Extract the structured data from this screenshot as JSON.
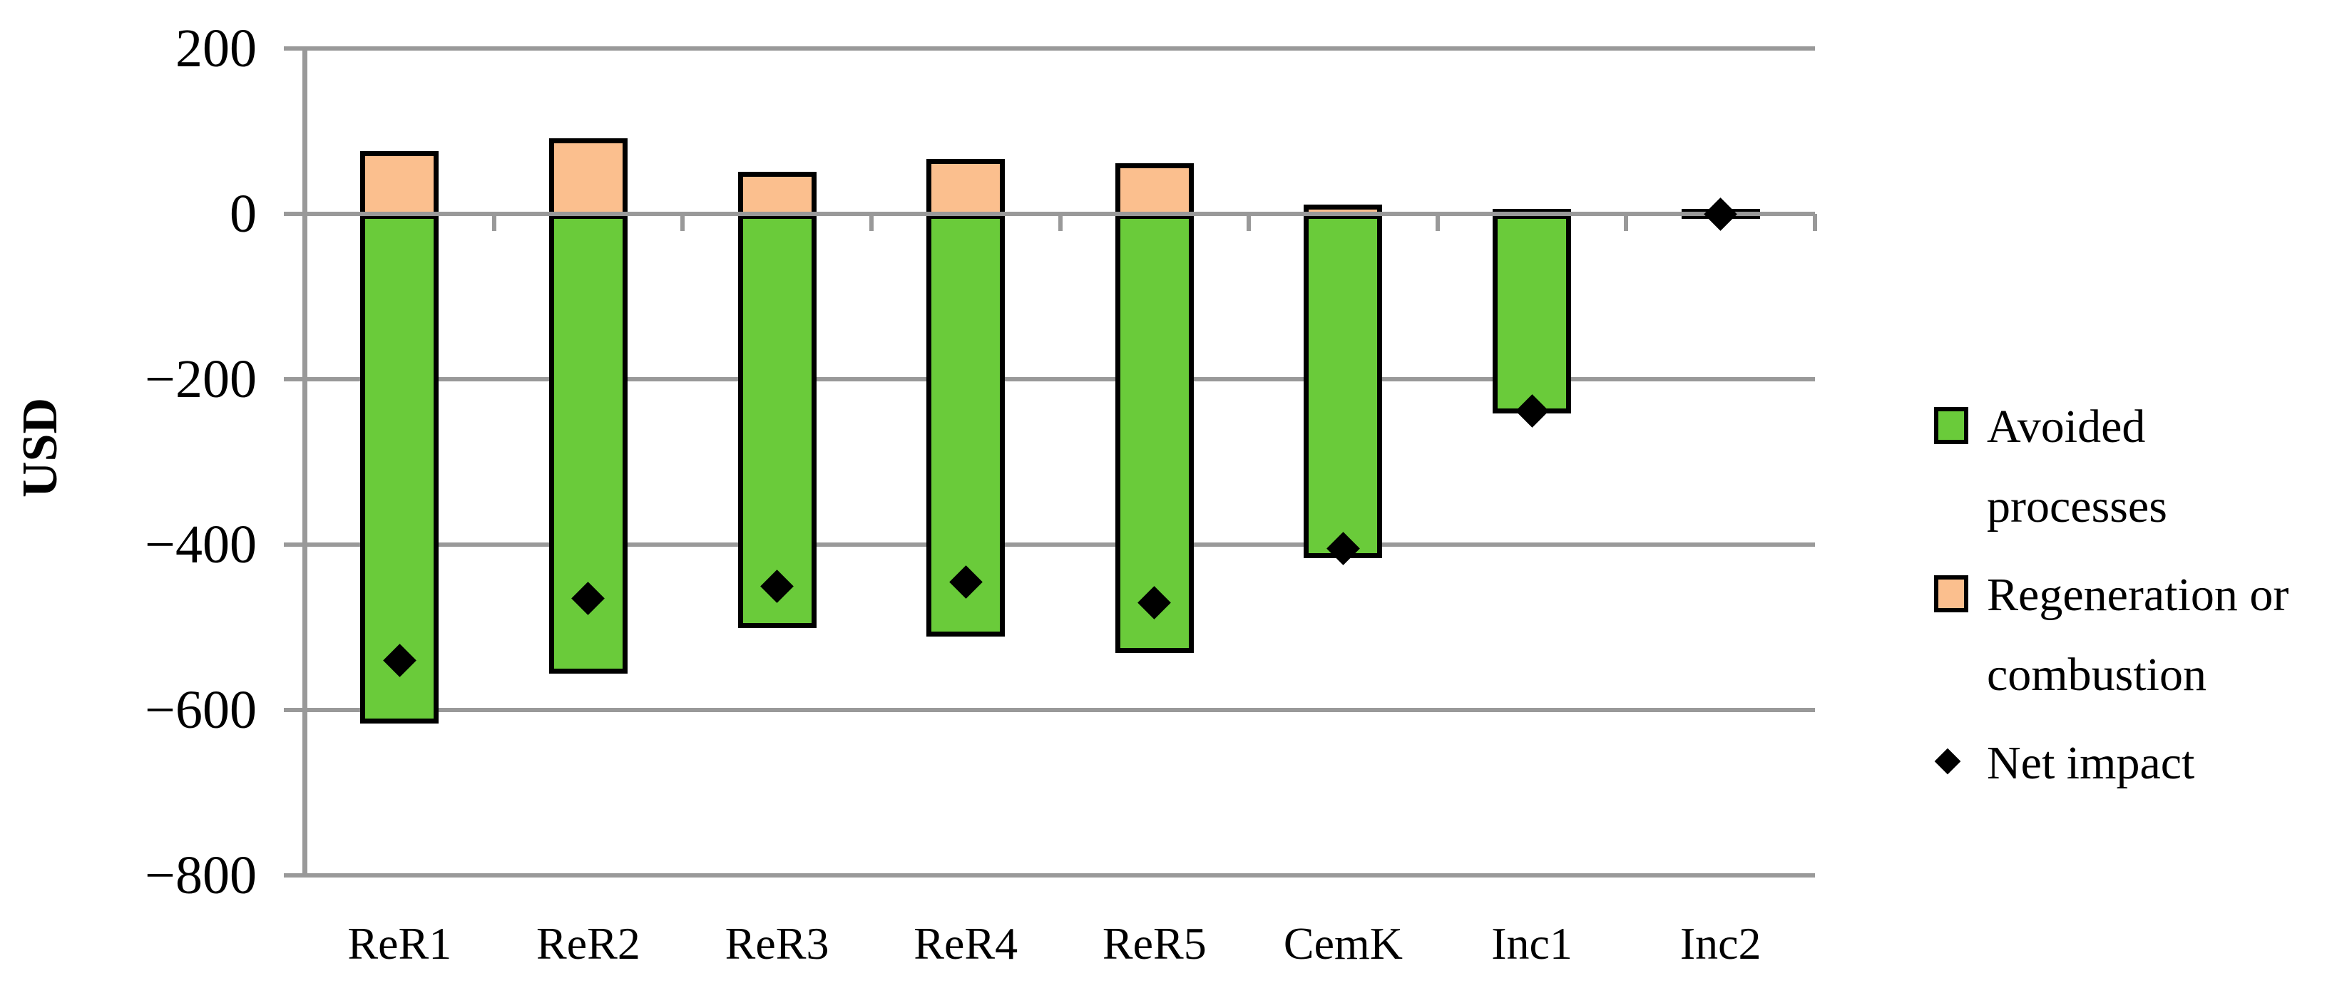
{
  "chart_data": {
    "type": "bar",
    "stacked": true,
    "title": "",
    "ylabel": "USD",
    "xlabel": "",
    "ylim": [
      -800,
      200
    ],
    "ytick_step": 200,
    "grid": true,
    "legend_position": "right",
    "categories": [
      "ReR1",
      "ReR2",
      "ReR3",
      "ReR4",
      "ReR5",
      "CemK",
      "Inc1",
      "Inc2"
    ],
    "yticks": [
      {
        "value": 200,
        "label": "200"
      },
      {
        "value": 0,
        "label": "0"
      },
      {
        "value": -200,
        "label": "−200"
      },
      {
        "value": -400,
        "label": "−400"
      },
      {
        "value": -600,
        "label": "−600"
      },
      {
        "value": -800,
        "label": "−800"
      }
    ],
    "series": [
      {
        "name": "Avoided processes",
        "type": "bar",
        "color": "#6ACB3A",
        "values": [
          -610,
          -550,
          -495,
          -505,
          -525,
          -410,
          -235,
          0
        ]
      },
      {
        "name": "Regeneration or combustion",
        "type": "bar",
        "color": "#FBBF8E",
        "values": [
          70,
          85,
          45,
          60,
          55,
          5,
          0,
          0
        ]
      },
      {
        "name": "Net impact",
        "type": "scatter",
        "marker": "diamond",
        "color": "#000000",
        "values": [
          -540,
          -465,
          -450,
          -445,
          -470,
          -405,
          -238,
          0
        ]
      }
    ],
    "colors": {
      "avoided": "#6ACB3A",
      "regeneration": "#FBBF8E",
      "net": "#000000",
      "gridline": "#999999",
      "bar_border": "#000000"
    }
  },
  "legend": {
    "items": [
      {
        "id": "avoided-processes",
        "swatch": "square",
        "color": "#6ACB3A",
        "label_lines": [
          "Avoided",
          "processes"
        ]
      },
      {
        "id": "regeneration-or-combustion",
        "swatch": "square",
        "color": "#FBBF8E",
        "label_lines": [
          "Regeneration or",
          "combustion"
        ]
      },
      {
        "id": "net-impact",
        "swatch": "diamond",
        "color": "#000000",
        "label_lines": [
          "Net impact"
        ]
      }
    ]
  }
}
